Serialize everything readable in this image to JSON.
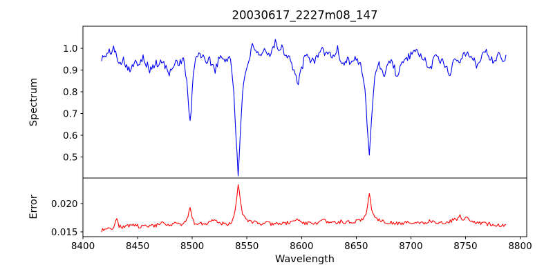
{
  "figure": {
    "background": "#ffffff"
  },
  "chart_data": {
    "type": "line",
    "title": "20030617_2227m08_147",
    "xlabel": "Wavelength",
    "xlim": [
      8400,
      8806
    ],
    "x_ticks": [
      8400,
      8450,
      8500,
      8550,
      8600,
      8650,
      8700,
      8750,
      8800
    ],
    "grid": false,
    "legend": "none",
    "absorption_line_centers": [
      8498,
      8542,
      8662
    ],
    "panels": [
      {
        "name": "spectrum",
        "ylabel": "Spectrum",
        "ylim": [
          0.403,
          1.102
        ],
        "y_ticks": [
          1.0,
          0.9,
          0.8,
          0.7,
          0.6,
          0.5
        ],
        "y_tick_labels": [
          "1.0",
          "0.9",
          "0.8",
          "0.7",
          "0.6",
          "0.5"
        ],
        "color": "#0000f0",
        "noise": {
          "seed": 101,
          "amplitude": 0.019
        },
        "anchors": [
          [
            8417,
            0.955
          ],
          [
            8420,
            0.96
          ],
          [
            8423,
            0.975
          ],
          [
            8426,
            0.99
          ],
          [
            8428,
            1.0
          ],
          [
            8431,
            0.96
          ],
          [
            8434,
            0.94
          ],
          [
            8437,
            0.95
          ],
          [
            8440,
            0.92
          ],
          [
            8444,
            0.905
          ],
          [
            8448,
            0.93
          ],
          [
            8452,
            0.94
          ],
          [
            8455,
            0.965
          ],
          [
            8458,
            0.93
          ],
          [
            8461,
            0.9
          ],
          [
            8464,
            0.915
          ],
          [
            8467,
            0.93
          ],
          [
            8470,
            0.925
          ],
          [
            8473,
            0.94
          ],
          [
            8476,
            0.91
          ],
          [
            8479,
            0.875
          ],
          [
            8482,
            0.92
          ],
          [
            8485,
            0.94
          ],
          [
            8488,
            0.935
          ],
          [
            8492,
            0.95
          ],
          [
            8495,
            0.85
          ],
          [
            8497,
            0.7
          ],
          [
            8498,
            0.655
          ],
          [
            8499,
            0.72
          ],
          [
            8501,
            0.87
          ],
          [
            8503,
            0.95
          ],
          [
            8506,
            0.985
          ],
          [
            8509,
            0.96
          ],
          [
            8512,
            0.94
          ],
          [
            8515,
            0.95
          ],
          [
            8518,
            0.93
          ],
          [
            8521,
            0.9
          ],
          [
            8524,
            0.945
          ],
          [
            8527,
            0.96
          ],
          [
            8530,
            0.945
          ],
          [
            8533,
            0.96
          ],
          [
            8535,
            0.95
          ],
          [
            8538,
            0.8
          ],
          [
            8540,
            0.6
          ],
          [
            8542,
            0.43
          ],
          [
            8544,
            0.6
          ],
          [
            8546,
            0.78
          ],
          [
            8548,
            0.88
          ],
          [
            8550,
            0.92
          ],
          [
            8553,
            0.97
          ],
          [
            8555,
            1.005
          ],
          [
            8558,
            0.98
          ],
          [
            8561,
            0.96
          ],
          [
            8564,
            0.975
          ],
          [
            8567,
            0.99
          ],
          [
            8570,
            0.97
          ],
          [
            8573,
            1.0
          ],
          [
            8576,
            1.03
          ],
          [
            8579,
            0.995
          ],
          [
            8582,
            1.01
          ],
          [
            8585,
            0.975
          ],
          [
            8588,
            0.97
          ],
          [
            8591,
            0.93
          ],
          [
            8594,
            0.88
          ],
          [
            8597,
            0.83
          ],
          [
            8600,
            0.91
          ],
          [
            8603,
            0.955
          ],
          [
            8606,
            0.96
          ],
          [
            8609,
            0.94
          ],
          [
            8612,
            0.945
          ],
          [
            8615,
            0.975
          ],
          [
            8618,
            1.0
          ],
          [
            8621,
            0.97
          ],
          [
            8624,
            0.99
          ],
          [
            8627,
            0.955
          ],
          [
            8630,
            0.975
          ],
          [
            8633,
            0.995
          ],
          [
            8636,
            0.94
          ],
          [
            8639,
            0.93
          ],
          [
            8642,
            0.955
          ],
          [
            8645,
            0.94
          ],
          [
            8648,
            0.95
          ],
          [
            8651,
            0.945
          ],
          [
            8654,
            0.93
          ],
          [
            8658,
            0.8
          ],
          [
            8660,
            0.65
          ],
          [
            8662,
            0.52
          ],
          [
            8664,
            0.67
          ],
          [
            8666,
            0.82
          ],
          [
            8668,
            0.9
          ],
          [
            8670,
            0.93
          ],
          [
            8673,
            0.91
          ],
          [
            8676,
            0.88
          ],
          [
            8679,
            0.93
          ],
          [
            8682,
            0.945
          ],
          [
            8685,
            0.91
          ],
          [
            8688,
            0.86
          ],
          [
            8691,
            0.92
          ],
          [
            8694,
            0.95
          ],
          [
            8697,
            0.96
          ],
          [
            8700,
            0.965
          ],
          [
            8703,
            0.975
          ],
          [
            8706,
            0.98
          ],
          [
            8709,
            0.975
          ],
          [
            8712,
            0.95
          ],
          [
            8715,
            0.92
          ],
          [
            8718,
            0.9
          ],
          [
            8721,
            0.96
          ],
          [
            8724,
            0.975
          ],
          [
            8727,
            0.945
          ],
          [
            8730,
            0.93
          ],
          [
            8733,
            0.91
          ],
          [
            8736,
            0.88
          ],
          [
            8739,
            0.945
          ],
          [
            8742,
            0.96
          ],
          [
            8745,
            0.95
          ],
          [
            8748,
            0.97
          ],
          [
            8751,
            0.98
          ],
          [
            8754,
            0.96
          ],
          [
            8757,
            0.945
          ],
          [
            8760,
            0.925
          ],
          [
            8763,
            0.95
          ],
          [
            8766,
            0.975
          ],
          [
            8769,
            0.99
          ],
          [
            8772,
            0.96
          ],
          [
            8775,
            0.945
          ],
          [
            8778,
            0.96
          ],
          [
            8781,
            0.965
          ],
          [
            8784,
            0.955
          ],
          [
            8787,
            0.955
          ]
        ]
      },
      {
        "name": "error",
        "ylabel": "Error",
        "ylim": [
          0.01415,
          0.0245
        ],
        "y_ticks": [
          0.02,
          0.015
        ],
        "y_tick_labels": [
          "0.020",
          "0.015"
        ],
        "color": "#ff0000",
        "noise": {
          "seed": 202,
          "amplitude": 0.00032
        },
        "anchors": [
          [
            8417,
            0.0152
          ],
          [
            8420,
            0.0155
          ],
          [
            8424,
            0.0158
          ],
          [
            8428,
            0.0156
          ],
          [
            8431,
            0.0175
          ],
          [
            8433,
            0.016
          ],
          [
            8436,
            0.0158
          ],
          [
            8440,
            0.0162
          ],
          [
            8444,
            0.016
          ],
          [
            8448,
            0.0163
          ],
          [
            8452,
            0.0158
          ],
          [
            8456,
            0.016
          ],
          [
            8460,
            0.0161
          ],
          [
            8464,
            0.016
          ],
          [
            8468,
            0.0162
          ],
          [
            8472,
            0.0165
          ],
          [
            8476,
            0.0163
          ],
          [
            8480,
            0.016
          ],
          [
            8484,
            0.0165
          ],
          [
            8488,
            0.0163
          ],
          [
            8492,
            0.0164
          ],
          [
            8495,
            0.017
          ],
          [
            8497,
            0.0185
          ],
          [
            8498,
            0.019
          ],
          [
            8500,
            0.0176
          ],
          [
            8502,
            0.0166
          ],
          [
            8506,
            0.0165
          ],
          [
            8510,
            0.0164
          ],
          [
            8514,
            0.0166
          ],
          [
            8518,
            0.017
          ],
          [
            8521,
            0.0172
          ],
          [
            8524,
            0.0166
          ],
          [
            8528,
            0.0165
          ],
          [
            8532,
            0.0164
          ],
          [
            8536,
            0.0168
          ],
          [
            8539,
            0.0185
          ],
          [
            8541,
            0.0215
          ],
          [
            8542,
            0.0235
          ],
          [
            8544,
            0.0205
          ],
          [
            8546,
            0.018
          ],
          [
            8549,
            0.0172
          ],
          [
            8552,
            0.017
          ],
          [
            8556,
            0.0167
          ],
          [
            8560,
            0.0165
          ],
          [
            8564,
            0.0164
          ],
          [
            8568,
            0.0165
          ],
          [
            8572,
            0.0164
          ],
          [
            8576,
            0.0166
          ],
          [
            8580,
            0.0164
          ],
          [
            8584,
            0.0165
          ],
          [
            8588,
            0.0166
          ],
          [
            8592,
            0.0168
          ],
          [
            8595,
            0.0172
          ],
          [
            8598,
            0.017
          ],
          [
            8602,
            0.0166
          ],
          [
            8606,
            0.0165
          ],
          [
            8610,
            0.0166
          ],
          [
            8614,
            0.0165
          ],
          [
            8618,
            0.0168
          ],
          [
            8621,
            0.017
          ],
          [
            8624,
            0.0166
          ],
          [
            8628,
            0.0167
          ],
          [
            8632,
            0.0166
          ],
          [
            8636,
            0.0168
          ],
          [
            8640,
            0.0166
          ],
          [
            8644,
            0.0167
          ],
          [
            8648,
            0.0168
          ],
          [
            8652,
            0.017
          ],
          [
            8656,
            0.0172
          ],
          [
            8659,
            0.018
          ],
          [
            8661,
            0.0205
          ],
          [
            8662,
            0.022
          ],
          [
            8664,
            0.019
          ],
          [
            8667,
            0.0176
          ],
          [
            8670,
            0.0172
          ],
          [
            8674,
            0.017
          ],
          [
            8678,
            0.0167
          ],
          [
            8682,
            0.0166
          ],
          [
            8686,
            0.0165
          ],
          [
            8690,
            0.0166
          ],
          [
            8694,
            0.0165
          ],
          [
            8698,
            0.0166
          ],
          [
            8702,
            0.0165
          ],
          [
            8706,
            0.0166
          ],
          [
            8710,
            0.0166
          ],
          [
            8714,
            0.0167
          ],
          [
            8718,
            0.017
          ],
          [
            8722,
            0.0166
          ],
          [
            8726,
            0.0167
          ],
          [
            8730,
            0.0166
          ],
          [
            8734,
            0.0168
          ],
          [
            8738,
            0.017
          ],
          [
            8742,
            0.0172
          ],
          [
            8745,
            0.0178
          ],
          [
            8748,
            0.017
          ],
          [
            8751,
            0.0175
          ],
          [
            8754,
            0.0172
          ],
          [
            8757,
            0.0168
          ],
          [
            8760,
            0.0166
          ],
          [
            8764,
            0.0165
          ],
          [
            8768,
            0.0164
          ],
          [
            8772,
            0.0164
          ],
          [
            8776,
            0.0163
          ],
          [
            8780,
            0.0162
          ],
          [
            8784,
            0.0161
          ],
          [
            8787,
            0.016
          ]
        ]
      }
    ]
  }
}
